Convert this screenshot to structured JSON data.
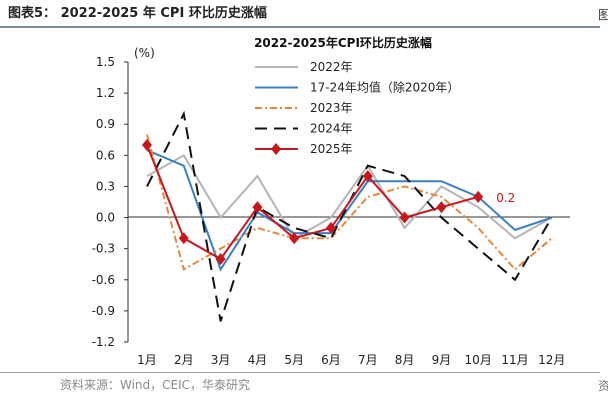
{
  "header": {
    "figure_title": "图表5：  2022-2025 年 CPI 环比历史涨幅",
    "edge_char": "图",
    "edge_char_bottom": "资"
  },
  "footer": {
    "source_note": "资料来源：Wind，CEIC，华泰研究"
  },
  "chart_data": {
    "type": "line",
    "title": "2022-2025年CPI环比历史涨幅",
    "ylabel": "(%)",
    "xlabel": "",
    "categories": [
      "1月",
      "2月",
      "3月",
      "4月",
      "5月",
      "6月",
      "7月",
      "8月",
      "9月",
      "10月",
      "11月",
      "12月"
    ],
    "ylim": [
      -1.2,
      1.5
    ],
    "yticks": [
      "1.5",
      "1.2",
      "0.9",
      "0.6",
      "0.3",
      "0.0",
      "-0.3",
      "-0.6",
      "-0.9",
      "-1.2"
    ],
    "ytick_values": [
      1.5,
      1.2,
      0.9,
      0.6,
      0.3,
      0.0,
      -0.3,
      -0.6,
      -0.9,
      -1.2
    ],
    "grid": false,
    "legend_position": "top-right",
    "series": [
      {
        "name": "2022年",
        "color": "#b5b5b5",
        "style": "solid",
        "values": [
          0.4,
          0.6,
          0.0,
          0.4,
          -0.2,
          0.0,
          0.5,
          -0.1,
          0.3,
          0.1,
          -0.2,
          0.0
        ]
      },
      {
        "name": "17-24年均值（除2020年）",
        "color": "#3a7fc1",
        "style": "solid",
        "values": [
          0.65,
          0.5,
          -0.5,
          0.05,
          -0.15,
          -0.15,
          0.35,
          0.35,
          0.35,
          0.2,
          -0.12,
          0.0
        ]
      },
      {
        "name": "2023年",
        "color": "#e8873a",
        "style": "dashdot",
        "values": [
          0.8,
          -0.5,
          -0.3,
          -0.1,
          -0.2,
          -0.2,
          0.2,
          0.3,
          0.2,
          -0.1,
          -0.5,
          -0.2
        ]
      },
      {
        "name": "2024年",
        "color": "#111111",
        "style": "dashed",
        "values": [
          0.3,
          1.0,
          -1.0,
          0.1,
          -0.1,
          -0.2,
          0.5,
          0.4,
          0.0,
          -0.3,
          -0.6,
          0.0
        ]
      },
      {
        "name": "2025年",
        "color": "#c8161d",
        "style": "solid",
        "marker": "diamond",
        "values": [
          0.7,
          -0.2,
          -0.4,
          0.1,
          -0.2,
          -0.1,
          0.4,
          0.0,
          0.1,
          0.2,
          null,
          null
        ]
      }
    ],
    "annotations": [
      {
        "text": "0.2",
        "series": "2025年",
        "category": "10月",
        "color": "#c8161d"
      }
    ]
  }
}
